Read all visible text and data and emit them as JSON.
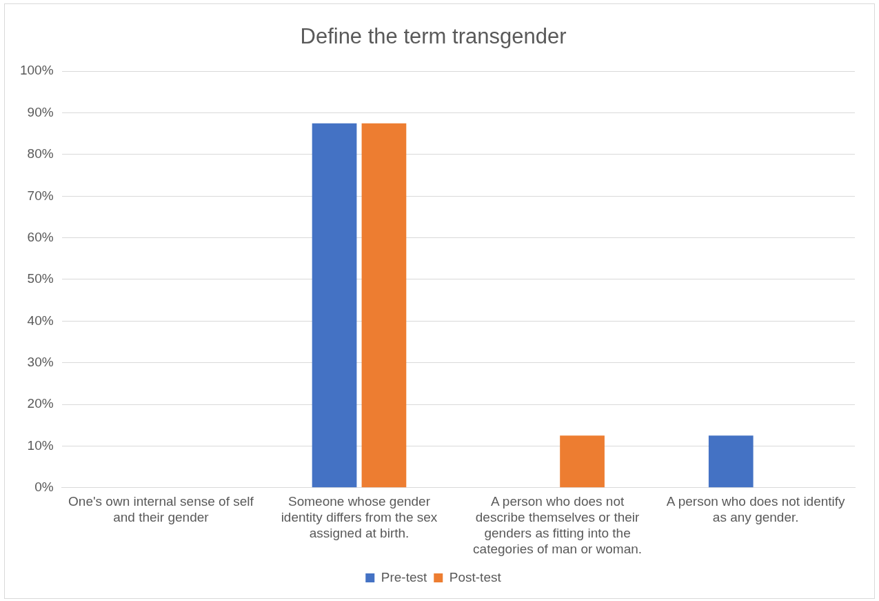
{
  "chart_data": {
    "type": "bar",
    "title": "Define the term transgender",
    "categories": [
      "One's own internal sense of self and their gender",
      "Someone whose gender identity differs from the sex assigned at birth.",
      "A person who does not describe themselves or their genders as fitting into the categories of man or woman.",
      "A person who does not identify as any gender."
    ],
    "series": [
      {
        "name": "Pre-test",
        "color": "#4472c4",
        "values": [
          0,
          87.5,
          0,
          12.5
        ]
      },
      {
        "name": "Post-test",
        "color": "#ed7d31",
        "values": [
          0,
          87.5,
          12.5,
          0
        ]
      }
    ],
    "ylim": [
      0,
      100
    ],
    "yticks": [
      {
        "value": 0,
        "label": "0%"
      },
      {
        "value": 10,
        "label": "10%"
      },
      {
        "value": 20,
        "label": "20%"
      },
      {
        "value": 30,
        "label": "30%"
      },
      {
        "value": 40,
        "label": "40%"
      },
      {
        "value": 50,
        "label": "50%"
      },
      {
        "value": 60,
        "label": "60%"
      },
      {
        "value": 70,
        "label": "70%"
      },
      {
        "value": 80,
        "label": "80%"
      },
      {
        "value": 90,
        "label": "90%"
      },
      {
        "value": 100,
        "label": "100%"
      }
    ],
    "grid": "y",
    "legend": "bottom"
  }
}
